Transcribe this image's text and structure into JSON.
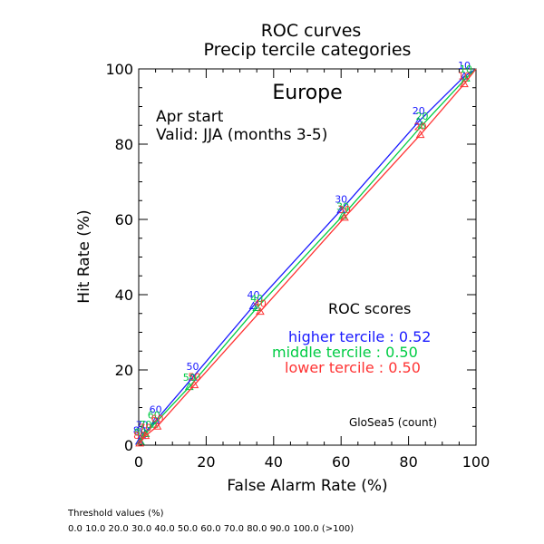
{
  "chart_data": {
    "type": "line",
    "title": "ROC curves",
    "subtitle": "Precip tercile categories",
    "region": "Europe",
    "start": "Apr start",
    "valid": "Valid: JJA (months 3-5)",
    "xlabel": "False Alarm Rate (%)",
    "ylabel": "Hit Rate (%)",
    "xlim": [
      0,
      100
    ],
    "ylim": [
      0,
      100
    ],
    "xticks": [
      "0",
      "20",
      "40",
      "60",
      "80",
      "100"
    ],
    "yticks": [
      "0",
      "20",
      "40",
      "60",
      "80",
      "100"
    ],
    "grid": false,
    "series": [
      {
        "name": "higher tercile",
        "color": "#1a1aff",
        "points": [
          {
            "x": 0,
            "y": 0,
            "label": ""
          },
          {
            "x": 0.2,
            "y": 1.0,
            "label": "80"
          },
          {
            "x": 1.0,
            "y": 2.5,
            "label": "70"
          },
          {
            "x": 5.0,
            "y": 6.5,
            "label": "60"
          },
          {
            "x": 16.0,
            "y": 18.0,
            "label": "50"
          },
          {
            "x": 34.0,
            "y": 37.0,
            "label": "40"
          },
          {
            "x": 60.0,
            "y": 62.5,
            "label": "30"
          },
          {
            "x": 83.0,
            "y": 86.0,
            "label": "20"
          },
          {
            "x": 96.5,
            "y": 98.0,
            "label": "10"
          },
          {
            "x": 100,
            "y": 100,
            "label": ""
          }
        ]
      },
      {
        "name": "middle tercile",
        "color": "#00cc44",
        "points": [
          {
            "x": 0,
            "y": 0,
            "label": ""
          },
          {
            "x": 0.5,
            "y": 1.0,
            "label": "80"
          },
          {
            "x": 2.0,
            "y": 3.0,
            "label": "70"
          },
          {
            "x": 4.5,
            "y": 5.5,
            "label": "60"
          },
          {
            "x": 15.0,
            "y": 15.5,
            "label": "50"
          },
          {
            "x": 35.0,
            "y": 36.5,
            "label": "40"
          },
          {
            "x": 60.5,
            "y": 61.0,
            "label": "30"
          },
          {
            "x": 84.0,
            "y": 85.0,
            "label": "20"
          },
          {
            "x": 97.0,
            "y": 97.5,
            "label": "10"
          },
          {
            "x": 100,
            "y": 100,
            "label": ""
          }
        ]
      },
      {
        "name": "lower tercile",
        "color": "#ff3333",
        "points": [
          {
            "x": 0,
            "y": 0,
            "label": ""
          },
          {
            "x": 0.3,
            "y": 0.5,
            "label": "80"
          },
          {
            "x": 2.0,
            "y": 2.5,
            "label": "70"
          },
          {
            "x": 5.5,
            "y": 5.0,
            "label": "60"
          },
          {
            "x": 16.5,
            "y": 16.0,
            "label": "50"
          },
          {
            "x": 36.0,
            "y": 35.5,
            "label": "40"
          },
          {
            "x": 61.0,
            "y": 60.5,
            "label": "30"
          },
          {
            "x": 83.5,
            "y": 82.5,
            "label": "20"
          },
          {
            "x": 96.5,
            "y": 96.0,
            "label": "10"
          },
          {
            "x": 100,
            "y": 100,
            "label": ""
          }
        ]
      }
    ],
    "legend": {
      "placement": "lower-right",
      "title": "ROC scores",
      "entries": [
        {
          "text": "higher tercile : 0.52",
          "color": "#1a1aff"
        },
        {
          "text": "middle tercile : 0.50",
          "color": "#00cc44"
        },
        {
          "text": "lower tercile : 0.50",
          "color": "#ff3333"
        }
      ]
    },
    "annotation": "GloSea5 (count)"
  },
  "footer": {
    "threshold_title": "Threshold values (%)",
    "threshold_values": "0.0 10.0 20.0 30.0 40.0 50.0 60.0 70.0 80.0 90.0 100.0 (>100)"
  }
}
